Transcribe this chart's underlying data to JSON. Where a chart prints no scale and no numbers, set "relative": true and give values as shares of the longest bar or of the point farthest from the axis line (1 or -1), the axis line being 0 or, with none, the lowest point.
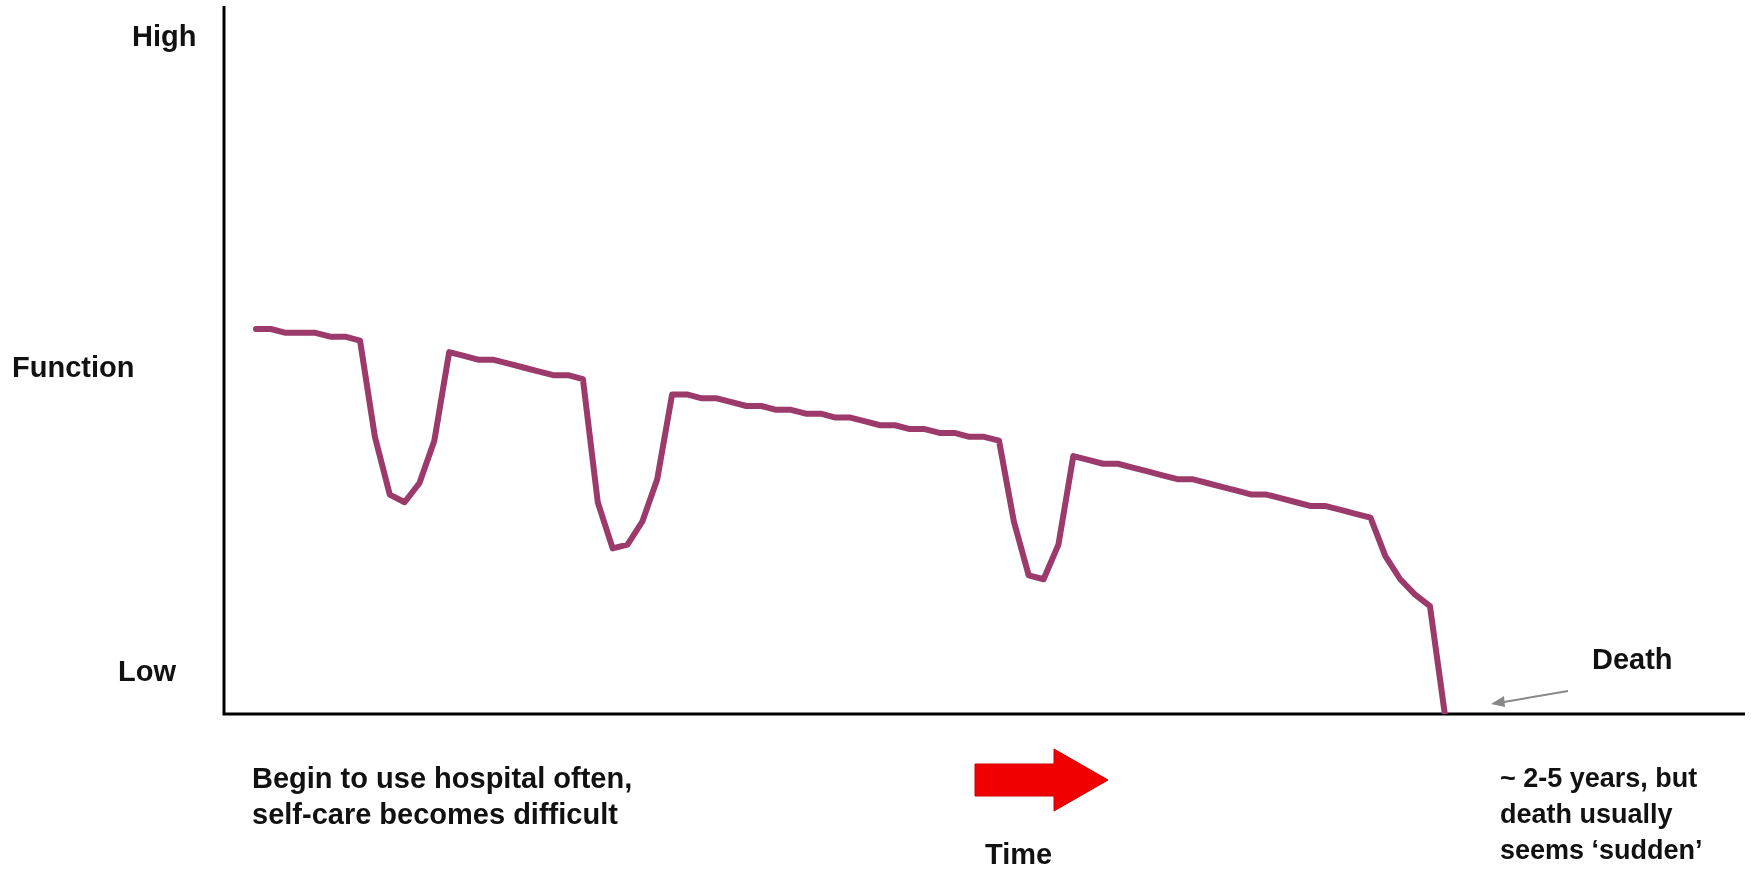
{
  "chart_data": {
    "type": "line",
    "relative": true,
    "ylabel": "Function",
    "xlabel": "Time",
    "legend": false,
    "marker": "none",
    "line_style": "solid",
    "categories": [
      null,
      null,
      null,
      null,
      null,
      null,
      null,
      null,
      null,
      null,
      null,
      null,
      null,
      null,
      null,
      null,
      null,
      null,
      null,
      null,
      null,
      null,
      null,
      null,
      null,
      null,
      null,
      null,
      null,
      null,
      null,
      null,
      null,
      null,
      null,
      null,
      null,
      null,
      null,
      null,
      null,
      null,
      null,
      null,
      null,
      null,
      null,
      null,
      null,
      null,
      null,
      null,
      null,
      null,
      null,
      null,
      null,
      null,
      null,
      null,
      null,
      null,
      null,
      null,
      null,
      null,
      null,
      null,
      null,
      null,
      null,
      null,
      null,
      null,
      null,
      null,
      null,
      null,
      null,
      null,
      null
    ],
    "series": [
      {
        "color": "#9b3a6b",
        "values": [
          1.0,
          1.0,
          0.99,
          0.99,
          0.99,
          0.98,
          0.98,
          0.97,
          0.72,
          0.57,
          0.55,
          0.6,
          0.71,
          0.94,
          0.93,
          0.92,
          0.92,
          0.91,
          0.9,
          0.89,
          0.88,
          0.88,
          0.87,
          0.55,
          0.43,
          0.44,
          0.5,
          0.61,
          0.83,
          0.83,
          0.82,
          0.82,
          0.81,
          0.8,
          0.8,
          0.79,
          0.79,
          0.78,
          0.78,
          0.77,
          0.77,
          0.76,
          0.75,
          0.75,
          0.74,
          0.74,
          0.73,
          0.73,
          0.72,
          0.72,
          0.71,
          0.5,
          0.36,
          0.35,
          0.44,
          0.67,
          0.66,
          0.65,
          0.65,
          0.64,
          0.63,
          0.62,
          0.61,
          0.61,
          0.6,
          0.59,
          0.58,
          0.57,
          0.57,
          0.56,
          0.55,
          0.54,
          0.54,
          0.53,
          0.52,
          0.51,
          0.41,
          0.35,
          0.31,
          0.28,
          0.0
        ]
      }
    ],
    "annotations": [
      "High",
      "Low",
      "Death",
      "Begin to use hospital often, self-care becomes difficult",
      "~ 2-5 years, but death usually seems ‘sudden’"
    ]
  }
}
